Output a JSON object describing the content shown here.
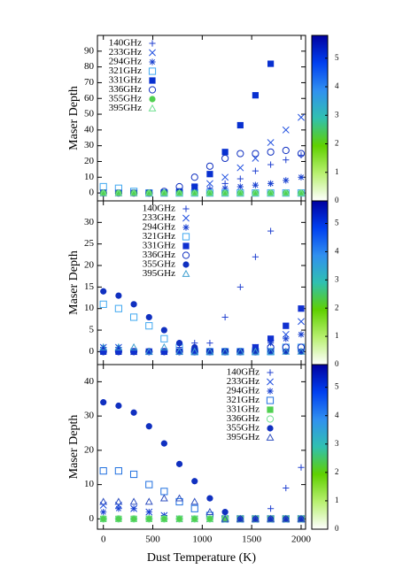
{
  "chart_data": [
    {
      "type": "scatter",
      "ylabel": "Maser Depth",
      "legend": "upper left",
      "x": [
        0,
        154,
        308,
        462,
        615,
        769,
        923,
        1077,
        1231,
        1385,
        1538,
        1692,
        1846,
        2000
      ],
      "xlim": [
        -60,
        2045
      ],
      "xticks": [
        0,
        500,
        1000,
        1500,
        2000
      ],
      "ylim": [
        -5,
        100
      ],
      "yticks": [
        0,
        10,
        20,
        30,
        40,
        50,
        60,
        70,
        80,
        90
      ],
      "colorbar": {
        "lim": [
          0,
          5.8
        ],
        "ticks": [
          0,
          1,
          2,
          3,
          4,
          5
        ],
        "colors": [
          "#ffffff",
          "#b8f070",
          "#60d000",
          "#30c0b0",
          "#3090f0",
          "#0040f0",
          "#0000a0"
        ]
      },
      "series": [
        {
          "name": "140GHz",
          "marker": "plus",
          "color": "#2040d0",
          "values": [
            0,
            0,
            0,
            0,
            0,
            0,
            1,
            3,
            6,
            9,
            14,
            18,
            21,
            24
          ]
        },
        {
          "name": "233GHz",
          "marker": "x",
          "color": "#2050e0",
          "values": [
            0,
            0,
            0,
            0,
            0,
            1,
            3,
            6,
            10,
            16,
            22,
            32,
            40,
            48
          ]
        },
        {
          "name": "294GHz",
          "marker": "star",
          "color": "#1840d0",
          "values": [
            0,
            0,
            0,
            0,
            0,
            0,
            1,
            2,
            3,
            4,
            5,
            6,
            8,
            10
          ]
        },
        {
          "name": "321GHz",
          "marker": "square-open",
          "color": "#40a8f0",
          "values": [
            4,
            3,
            1,
            0,
            0,
            0,
            0,
            0,
            0,
            0,
            0,
            0,
            0,
            0
          ]
        },
        {
          "name": "331GHz",
          "marker": "square",
          "color": "#0830d0",
          "values": [
            0,
            0,
            0,
            0,
            0,
            1,
            4,
            12,
            26,
            43,
            62,
            82,
            null,
            null
          ]
        },
        {
          "name": "336GHz",
          "marker": "circle-open",
          "color": "#1030c0",
          "values": [
            0,
            0,
            0,
            0,
            1,
            4,
            10,
            17,
            22,
            25,
            25,
            26,
            27,
            25
          ]
        },
        {
          "name": "355GHz",
          "marker": "circle",
          "color": "#50d050",
          "values": [
            0,
            0,
            0,
            0,
            0,
            0,
            0,
            0,
            0,
            0,
            0,
            0,
            0,
            0
          ]
        },
        {
          "name": "395GHz",
          "marker": "triangle-open",
          "color": "#70e090",
          "values": [
            0,
            0,
            0,
            0,
            0,
            0,
            0,
            0,
            0,
            0,
            0,
            0,
            0,
            0
          ]
        }
      ]
    },
    {
      "type": "scatter",
      "ylabel": "Maser Depth",
      "legend": "upper center",
      "x": [
        0,
        154,
        308,
        462,
        615,
        769,
        923,
        1077,
        1231,
        1385,
        1538,
        1692,
        1846,
        2000
      ],
      "xlim": [
        -60,
        2045
      ],
      "xticks": [
        0,
        500,
        1000,
        1500,
        2000
      ],
      "ylim": [
        -3,
        35
      ],
      "yticks": [
        0,
        5,
        10,
        15,
        20,
        25,
        30
      ],
      "colorbar": {
        "lim": [
          0,
          5.8
        ],
        "ticks": [
          0,
          1,
          2,
          3,
          4,
          5
        ],
        "colors": [
          "#ffffff",
          "#b8f070",
          "#60d000",
          "#30c0b0",
          "#3090f0",
          "#0040f0",
          "#0000a0"
        ]
      },
      "series": [
        {
          "name": "140GHz",
          "marker": "plus",
          "color": "#2040d0",
          "values": [
            1,
            1,
            0,
            0,
            0,
            1,
            2,
            2,
            8,
            15,
            22,
            28,
            null,
            null
          ]
        },
        {
          "name": "233GHz",
          "marker": "x",
          "color": "#2050e0",
          "values": [
            1,
            1,
            0,
            0,
            0,
            0,
            0,
            0,
            0,
            0,
            1,
            2,
            4,
            7
          ]
        },
        {
          "name": "294GHz",
          "marker": "star",
          "color": "#1840d0",
          "values": [
            1,
            1,
            0,
            0,
            0,
            0,
            0,
            0,
            0,
            0,
            1,
            2,
            3,
            4
          ]
        },
        {
          "name": "321GHz",
          "marker": "square-open",
          "color": "#40a8f0",
          "values": [
            11,
            10,
            8,
            6,
            3,
            1,
            0,
            0,
            0,
            0,
            0,
            0,
            1,
            1
          ]
        },
        {
          "name": "331GHz",
          "marker": "square",
          "color": "#1030d0",
          "values": [
            0,
            0,
            0,
            0,
            0,
            0,
            0,
            0,
            0,
            0,
            1,
            3,
            6,
            10
          ]
        },
        {
          "name": "336GHz",
          "marker": "circle-open",
          "color": "#1030c0",
          "values": [
            0,
            0,
            0,
            0,
            0,
            0,
            0,
            0,
            0,
            0,
            0,
            1,
            1,
            1
          ]
        },
        {
          "name": "355GHz",
          "marker": "circle",
          "color": "#1030c0",
          "values": [
            14,
            13,
            11,
            8,
            5,
            2,
            1,
            0,
            0,
            0,
            0,
            0,
            0,
            0
          ]
        },
        {
          "name": "395GHz",
          "marker": "triangle-open",
          "color": "#40a0d0",
          "values": [
            1,
            1,
            1,
            0,
            1,
            0,
            0,
            0,
            0,
            0,
            0,
            0,
            0,
            0
          ]
        }
      ]
    },
    {
      "type": "scatter",
      "ylabel": "Maser Depth",
      "xlabel": "Dust Temperature (K)",
      "legend": "upper right",
      "x": [
        0,
        154,
        308,
        462,
        615,
        769,
        923,
        1077,
        1231,
        1385,
        1538,
        1692,
        1846,
        2000
      ],
      "xlim": [
        -60,
        2045
      ],
      "xticks": [
        0,
        500,
        1000,
        1500,
        2000
      ],
      "ylim": [
        -3,
        45
      ],
      "yticks": [
        0,
        10,
        20,
        30,
        40
      ],
      "colorbar": {
        "lim": [
          0,
          5.8
        ],
        "ticks": [
          0,
          1,
          2,
          3,
          4,
          5
        ],
        "colors": [
          "#ffffff",
          "#b8f070",
          "#60d000",
          "#30c0b0",
          "#3090f0",
          "#0040f0",
          "#0000a0"
        ]
      },
      "series": [
        {
          "name": "140GHz",
          "marker": "plus",
          "color": "#2040d0",
          "values": [
            0,
            0,
            0,
            0,
            0,
            0,
            0,
            0,
            0,
            0,
            0,
            3,
            9,
            15
          ]
        },
        {
          "name": "233GHz",
          "marker": "x",
          "color": "#2050e0",
          "values": [
            4,
            4,
            3,
            2,
            1,
            0,
            0,
            0,
            0,
            0,
            0,
            0,
            0,
            0
          ]
        },
        {
          "name": "294GHz",
          "marker": "star",
          "color": "#1840d0",
          "values": [
            2,
            3,
            3,
            2,
            1,
            0,
            0,
            0,
            0,
            0,
            0,
            0,
            0,
            0
          ]
        },
        {
          "name": "321GHz",
          "marker": "square-open",
          "color": "#2070e0",
          "values": [
            14,
            14,
            13,
            10,
            8,
            5,
            3,
            1,
            0,
            0,
            0,
            0,
            0,
            0
          ]
        },
        {
          "name": "331GHz",
          "marker": "square",
          "color": "#50d050",
          "values": [
            0,
            0,
            0,
            0,
            0,
            0,
            0,
            0,
            0,
            0,
            0,
            0,
            0,
            0
          ]
        },
        {
          "name": "336GHz",
          "marker": "circle-open",
          "color": "#70e090",
          "values": [
            0,
            0,
            0,
            0,
            0,
            0,
            0,
            0,
            0,
            0,
            0,
            0,
            0,
            0
          ]
        },
        {
          "name": "355GHz",
          "marker": "circle",
          "color": "#1030c0",
          "values": [
            34,
            33,
            31,
            27,
            22,
            16,
            11,
            6,
            2,
            0,
            0,
            0,
            0,
            0
          ]
        },
        {
          "name": "395GHz",
          "marker": "triangle-open",
          "color": "#3050c0",
          "values": [
            5,
            5,
            5,
            5,
            6,
            6,
            5,
            2,
            0,
            0,
            0,
            0,
            0,
            0
          ]
        }
      ]
    }
  ]
}
